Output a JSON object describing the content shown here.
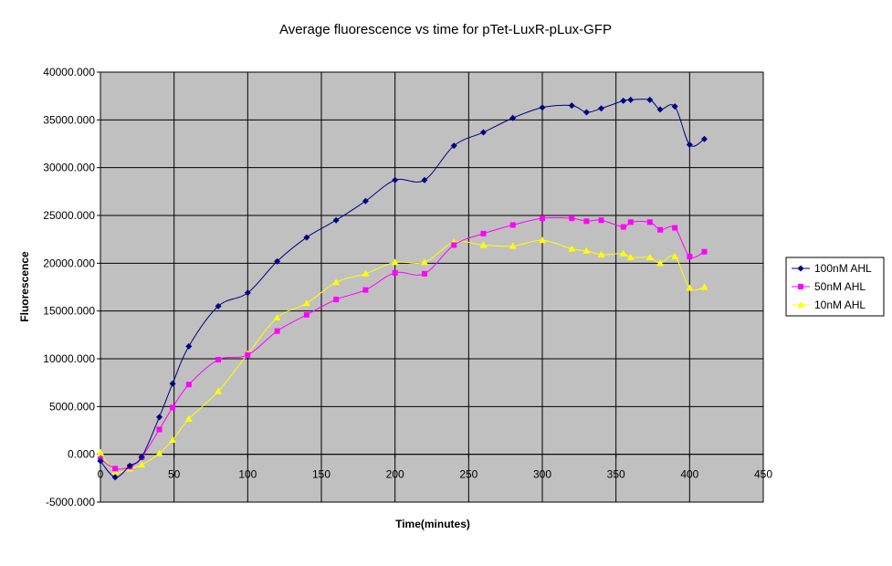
{
  "chart_data": {
    "type": "line",
    "title": "Average fluorescence vs time for pTet-LuxR-pLux-GFP",
    "xlabel": "Time(minutes)",
    "ylabel": "Fluorescence",
    "xlim": [
      0,
      450
    ],
    "ylim": [
      -5000,
      40000
    ],
    "xticks": [
      0,
      50,
      100,
      150,
      200,
      250,
      300,
      350,
      400,
      450
    ],
    "xtick_labels": [
      "0",
      "50",
      "100",
      "150",
      "200",
      "250",
      "300",
      "350",
      "400",
      "450"
    ],
    "yticks": [
      -5000,
      0,
      5000,
      10000,
      15000,
      20000,
      25000,
      30000,
      35000,
      40000
    ],
    "ytick_labels": [
      "-5000.000",
      "0.000",
      "5000.000",
      "10000.000",
      "15000.000",
      "20000.000",
      "25000.000",
      "30000.000",
      "35000.000",
      "40000.000"
    ],
    "grid": true,
    "legend_position": "right",
    "series": [
      {
        "name": "100nM AHL",
        "color": "#000080",
        "marker": "diamond",
        "x": [
          0,
          10,
          20,
          28,
          40,
          49,
          60,
          80,
          100,
          120,
          140,
          160,
          180,
          200,
          220,
          240,
          260,
          280,
          300,
          320,
          330,
          340,
          355,
          360,
          373,
          380,
          390,
          400,
          410
        ],
        "y": [
          -700,
          -2400,
          -1200,
          -300,
          3900,
          7400,
          11300,
          15500,
          16900,
          20200,
          22700,
          24500,
          26500,
          28700,
          28700,
          32300,
          33700,
          35200,
          36300,
          36500,
          35800,
          36200,
          37000,
          37100,
          37100,
          36100,
          36400,
          32400,
          33000
        ]
      },
      {
        "name": "50nM AHL",
        "color": "#FF00FF",
        "marker": "square",
        "x": [
          0,
          10,
          20,
          28,
          40,
          49,
          60,
          80,
          100,
          120,
          140,
          160,
          180,
          200,
          220,
          240,
          260,
          280,
          300,
          320,
          330,
          340,
          355,
          360,
          373,
          380,
          390,
          400,
          410
        ],
        "y": [
          -500,
          -1500,
          -1300,
          -300,
          2600,
          4900,
          7300,
          9900,
          10400,
          12900,
          14600,
          16200,
          17200,
          19000,
          18900,
          21900,
          23100,
          24000,
          24700,
          24700,
          24400,
          24500,
          23800,
          24300,
          24300,
          23500,
          23700,
          20700,
          21200
        ]
      },
      {
        "name": "10nM AHL",
        "color": "#FFFF00",
        "marker": "triangle",
        "x": [
          0,
          10,
          20,
          28,
          40,
          49,
          60,
          80,
          100,
          120,
          140,
          160,
          180,
          200,
          220,
          240,
          260,
          280,
          300,
          320,
          330,
          340,
          355,
          360,
          373,
          380,
          390,
          400,
          410
        ],
        "y": [
          200,
          -1800,
          -1500,
          -1100,
          100,
          1500,
          3700,
          6600,
          10500,
          14300,
          15800,
          18000,
          18900,
          20100,
          20100,
          22200,
          21900,
          21800,
          22400,
          21500,
          21300,
          20900,
          21000,
          20600,
          20600,
          20000,
          20700,
          17400,
          17500
        ]
      }
    ]
  }
}
